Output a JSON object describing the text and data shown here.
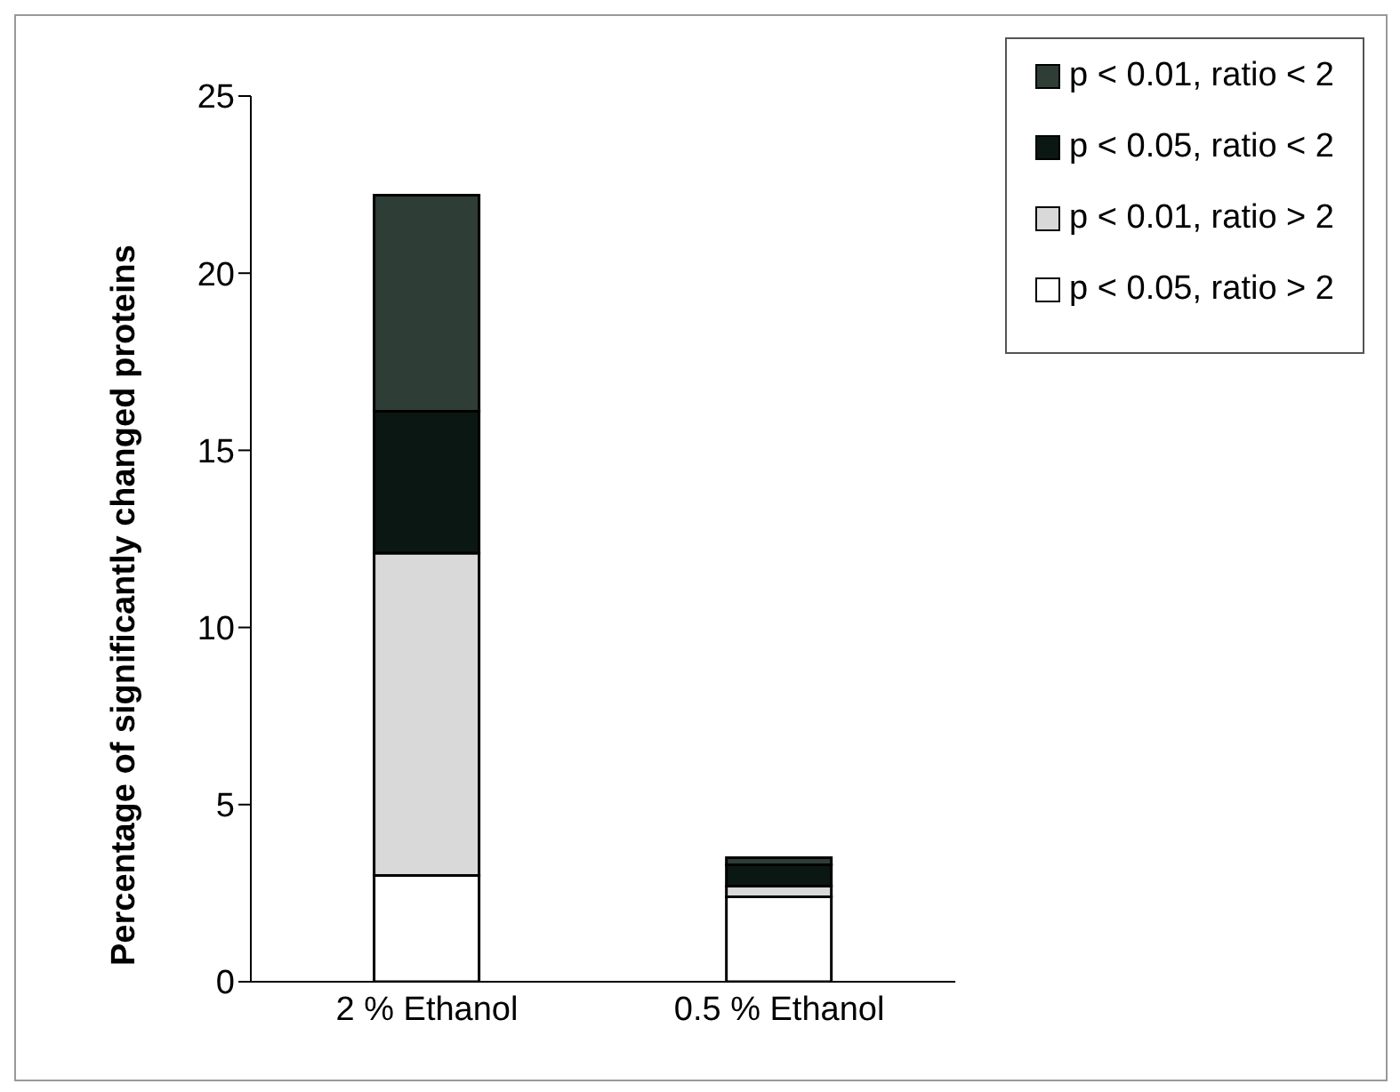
{
  "chart_data": {
    "type": "bar",
    "stacked": true,
    "ylabel": "Percentage of significantly  changed proteins",
    "categories": [
      "2 % Ethanol",
      "0.5 % Ethanol"
    ],
    "series": [
      {
        "name": "p < 0.05, ratio > 2",
        "color": "#ffffff",
        "values": [
          3.0,
          2.4
        ]
      },
      {
        "name": "p < 0.01, ratio > 2",
        "color": "#d9d9d9",
        "values": [
          9.1,
          0.3
        ]
      },
      {
        "name": "p < 0.05, ratio < 2",
        "color": "#0b1713",
        "values": [
          4.0,
          0.6
        ]
      },
      {
        "name": "p < 0.01, ratio < 2",
        "color": "#2f3d37",
        "values": [
          6.1,
          0.2
        ]
      }
    ],
    "ylim": [
      0,
      25
    ],
    "yticks": [
      0,
      5,
      10,
      15,
      20,
      25
    ],
    "grid": false,
    "legend": "top right"
  }
}
